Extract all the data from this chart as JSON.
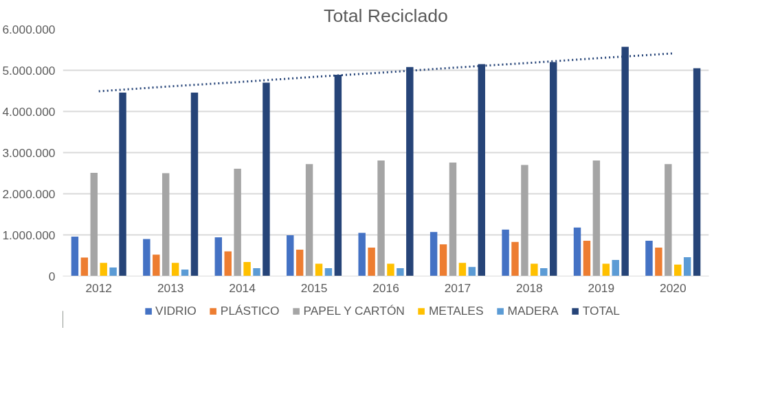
{
  "chart_data": {
    "type": "bar",
    "title": "Total Reciclado",
    "categories": [
      "2012",
      "2013",
      "2014",
      "2015",
      "2016",
      "2017",
      "2018",
      "2019",
      "2020"
    ],
    "series": [
      {
        "name": "VIDRIO",
        "color": "#4472c4",
        "values": [
          960000,
          900000,
          940000,
          990000,
          1050000,
          1070000,
          1130000,
          1180000,
          860000
        ]
      },
      {
        "name": "PLÁSTICO",
        "color": "#ed7d31",
        "values": [
          450000,
          520000,
          600000,
          640000,
          690000,
          770000,
          830000,
          860000,
          690000
        ]
      },
      {
        "name": "PAPEL Y CARTÓN",
        "color": "#a5a5a5",
        "values": [
          2510000,
          2500000,
          2610000,
          2720000,
          2810000,
          2760000,
          2700000,
          2810000,
          2720000
        ]
      },
      {
        "name": "METALES",
        "color": "#ffc000",
        "values": [
          320000,
          320000,
          340000,
          300000,
          300000,
          320000,
          300000,
          300000,
          280000
        ]
      },
      {
        "name": "MADERA",
        "color": "#5b9bd5",
        "values": [
          210000,
          160000,
          190000,
          190000,
          190000,
          220000,
          190000,
          390000,
          460000
        ]
      },
      {
        "name": "TOTAL",
        "color": "#264478",
        "values": [
          4460000,
          4460000,
          4700000,
          4890000,
          5080000,
          5150000,
          5200000,
          5570000,
          5050000
        ]
      },
      {
        "type": "line",
        "color": "#264478",
        "line_style": "dotted",
        "values": [
          4490000,
          4610000,
          4720000,
          4840000,
          4950000,
          5070000,
          5180000,
          5300000,
          5410000
        ]
      }
    ],
    "ylim": [
      0,
      6000000
    ],
    "yticks": [
      {
        "value": 0,
        "label": "0"
      },
      {
        "value": 1000000,
        "label": "1.000.000"
      },
      {
        "value": 2000000,
        "label": "2.000.000"
      },
      {
        "value": 3000000,
        "label": "3.000.000"
      },
      {
        "value": 4000000,
        "label": "4.000.000"
      },
      {
        "value": 5000000,
        "label": "5.000.000"
      },
      {
        "value": 6000000,
        "label": "6.000.000"
      }
    ],
    "grid": "y",
    "legend": "bottom"
  }
}
